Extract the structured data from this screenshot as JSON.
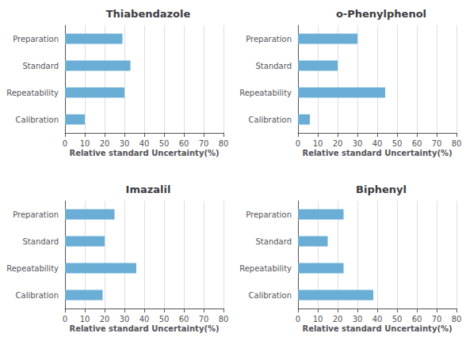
{
  "chart_data": [
    {
      "type": "bar",
      "orientation": "horizontal",
      "title": "Thiabendazole",
      "categories": [
        "Preparation",
        "Standard",
        "Repeatability",
        "Calibration"
      ],
      "values": [
        29,
        33,
        30,
        10
      ],
      "color": "#6aaed6",
      "xlabel": "Relative standard Uncertainty(%)",
      "xlim": [
        0,
        80
      ],
      "xticks": [
        0,
        10,
        20,
        30,
        40,
        50,
        60,
        70,
        80
      ],
      "grid": true
    },
    {
      "type": "bar",
      "orientation": "horizontal",
      "title": "o-Phenylphenol",
      "categories": [
        "Preparation",
        "Standard",
        "Repeatability",
        "Calibration"
      ],
      "values": [
        30,
        20,
        44,
        6
      ],
      "color": "#6aaed6",
      "xlabel": "Relative standard Uncertainty(%)",
      "xlim": [
        0,
        80
      ],
      "xticks": [
        0,
        10,
        20,
        30,
        40,
        50,
        60,
        70,
        80
      ],
      "grid": true
    },
    {
      "type": "bar",
      "orientation": "horizontal",
      "title": "Imazalil",
      "categories": [
        "Preparation",
        "Standard",
        "Repeatability",
        "Calibration"
      ],
      "values": [
        25,
        20,
        36,
        19
      ],
      "color": "#6aaed6",
      "xlabel": "Relative standard Uncertainty(%)",
      "xlim": [
        0,
        80
      ],
      "xticks": [
        0,
        10,
        20,
        30,
        40,
        50,
        60,
        70,
        80
      ],
      "grid": true
    },
    {
      "type": "bar",
      "orientation": "horizontal",
      "title": "Biphenyl",
      "categories": [
        "Preparation",
        "Standard",
        "Repeatability",
        "Calibration"
      ],
      "values": [
        23,
        15,
        23,
        38
      ],
      "color": "#6aaed6",
      "xlabel": "Relative standard Uncertainty(%)",
      "xlim": [
        0,
        80
      ],
      "xticks": [
        0,
        10,
        20,
        30,
        40,
        50,
        60,
        70,
        80
      ],
      "grid": true
    }
  ]
}
